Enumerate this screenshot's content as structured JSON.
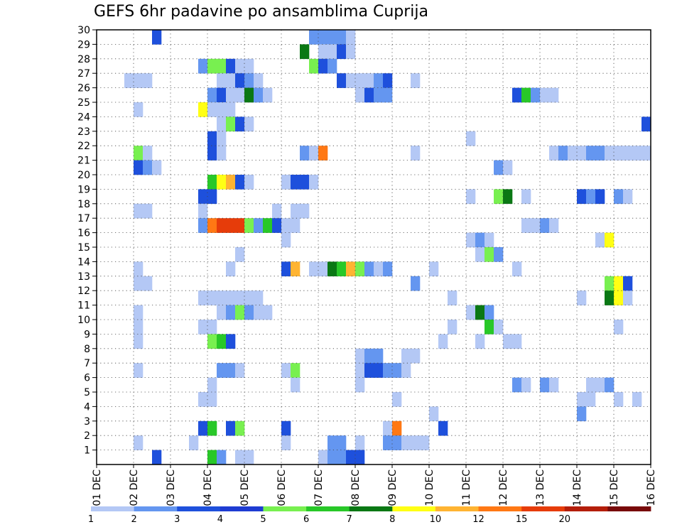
{
  "chart_data": {
    "type": "heatmap",
    "title": "GEFS 6hr padavine po ansamblima Cuprija",
    "xlabel": "",
    "ylabel": "",
    "x_tick_labels": [
      "01 DEC",
      "02 DEC",
      "03 DEC",
      "04 DEC",
      "05 DEC",
      "06 DEC",
      "07 DEC",
      "08 DEC",
      "09 DEC",
      "10 DEC",
      "11 DEC",
      "12 DEC",
      "13 DEC",
      "14 DEC",
      "15 DEC",
      "16 DEC"
    ],
    "y_tick_labels": [
      "1",
      "2",
      "3",
      "4",
      "5",
      "6",
      "7",
      "8",
      "9",
      "10",
      "11",
      "12",
      "13",
      "14",
      "15",
      "16",
      "17",
      "18",
      "19",
      "20",
      "21",
      "22",
      "23",
      "24",
      "25",
      "26",
      "27",
      "28",
      "29",
      "30"
    ],
    "xlim": [
      0,
      60
    ],
    "ylim": [
      0,
      30
    ],
    "grid": true,
    "legend": {
      "placement": "bottom",
      "labels": [
        "1",
        "2",
        "3",
        "4",
        "5",
        "6",
        "7",
        "8",
        "10",
        "12",
        "15",
        "20"
      ],
      "colors": [
        "#b4c8f5",
        "#6496f0",
        "#1e50dc",
        "#1e3cd2",
        "#78f050",
        "#28c828",
        "#0a7814",
        "#ffff14",
        "#ffb432",
        "#ff7814",
        "#e63c0a",
        "#b41e0a",
        "#780a0a"
      ]
    },
    "color_levels": [
      "#b4c8f5",
      "#6496f0",
      "#1e50dc",
      "#78f050",
      "#28c828",
      "#0a7814",
      "#ffff14",
      "#ffb432",
      "#ff7814",
      "#e63c0a"
    ],
    "cells_format": "[time_step_6h, member, level_index]",
    "cells": [
      [
        6,
        30,
        2
      ],
      [
        23,
        30,
        1
      ],
      [
        24,
        30,
        1
      ],
      [
        25,
        30,
        1
      ],
      [
        26,
        30,
        1
      ],
      [
        27,
        30,
        0
      ],
      [
        22,
        29,
        5
      ],
      [
        24,
        29,
        0
      ],
      [
        25,
        29,
        0
      ],
      [
        26,
        29,
        2
      ],
      [
        27,
        29,
        0
      ],
      [
        11,
        28,
        1
      ],
      [
        12,
        28,
        3
      ],
      [
        13,
        28,
        3
      ],
      [
        14,
        28,
        2
      ],
      [
        15,
        28,
        0
      ],
      [
        16,
        28,
        0
      ],
      [
        23,
        28,
        3
      ],
      [
        24,
        28,
        2
      ],
      [
        25,
        28,
        1
      ],
      [
        3,
        27,
        0
      ],
      [
        4,
        27,
        0
      ],
      [
        5,
        27,
        0
      ],
      [
        13,
        27,
        0
      ],
      [
        14,
        27,
        0
      ],
      [
        15,
        27,
        2
      ],
      [
        16,
        27,
        1
      ],
      [
        17,
        27,
        0
      ],
      [
        26,
        27,
        2
      ],
      [
        27,
        27,
        0
      ],
      [
        28,
        27,
        0
      ],
      [
        29,
        27,
        0
      ],
      [
        30,
        27,
        1
      ],
      [
        31,
        27,
        2
      ],
      [
        34,
        27,
        0
      ],
      [
        12,
        26,
        1
      ],
      [
        13,
        26,
        2
      ],
      [
        14,
        26,
        0
      ],
      [
        15,
        26,
        0
      ],
      [
        16,
        26,
        5
      ],
      [
        17,
        26,
        1
      ],
      [
        18,
        26,
        0
      ],
      [
        28,
        26,
        0
      ],
      [
        29,
        26,
        2
      ],
      [
        30,
        26,
        1
      ],
      [
        31,
        26,
        1
      ],
      [
        45,
        26,
        2
      ],
      [
        46,
        26,
        4
      ],
      [
        47,
        26,
        1
      ],
      [
        48,
        26,
        0
      ],
      [
        49,
        26,
        0
      ],
      [
        4,
        25,
        0
      ],
      [
        11,
        25,
        6
      ],
      [
        12,
        25,
        0
      ],
      [
        13,
        25,
        0
      ],
      [
        14,
        25,
        0
      ],
      [
        13,
        24,
        0
      ],
      [
        14,
        24,
        3
      ],
      [
        15,
        24,
        2
      ],
      [
        16,
        24,
        0
      ],
      [
        59,
        24,
        2
      ],
      [
        12,
        23,
        2
      ],
      [
        13,
        23,
        0
      ],
      [
        40,
        23,
        0
      ],
      [
        4,
        22,
        3
      ],
      [
        5,
        22,
        0
      ],
      [
        12,
        22,
        2
      ],
      [
        13,
        22,
        0
      ],
      [
        22,
        22,
        1
      ],
      [
        23,
        22,
        0
      ],
      [
        24,
        22,
        8
      ],
      [
        34,
        22,
        0
      ],
      [
        49,
        22,
        0
      ],
      [
        50,
        22,
        1
      ],
      [
        51,
        22,
        0
      ],
      [
        52,
        22,
        0
      ],
      [
        53,
        22,
        1
      ],
      [
        54,
        22,
        1
      ],
      [
        55,
        22,
        0
      ],
      [
        56,
        22,
        0
      ],
      [
        57,
        22,
        0
      ],
      [
        58,
        22,
        0
      ],
      [
        59,
        22,
        0
      ],
      [
        4,
        21,
        2
      ],
      [
        5,
        21,
        1
      ],
      [
        6,
        21,
        0
      ],
      [
        43,
        21,
        1
      ],
      [
        44,
        21,
        0
      ],
      [
        12,
        20,
        4
      ],
      [
        13,
        20,
        6
      ],
      [
        14,
        20,
        7
      ],
      [
        15,
        20,
        2
      ],
      [
        16,
        20,
        0
      ],
      [
        20,
        20,
        0
      ],
      [
        21,
        20,
        2
      ],
      [
        22,
        20,
        2
      ],
      [
        23,
        20,
        0
      ],
      [
        11,
        19,
        2
      ],
      [
        12,
        19,
        2
      ],
      [
        40,
        19,
        0
      ],
      [
        43,
        19,
        3
      ],
      [
        44,
        19,
        5
      ],
      [
        46,
        19,
        0
      ],
      [
        52,
        19,
        2
      ],
      [
        53,
        19,
        1
      ],
      [
        54,
        19,
        2
      ],
      [
        56,
        19,
        1
      ],
      [
        57,
        19,
        0
      ],
      [
        4,
        18,
        0
      ],
      [
        5,
        18,
        0
      ],
      [
        11,
        18,
        0
      ],
      [
        19,
        18,
        0
      ],
      [
        21,
        18,
        0
      ],
      [
        22,
        18,
        0
      ],
      [
        11,
        17,
        1
      ],
      [
        12,
        17,
        8
      ],
      [
        13,
        17,
        9
      ],
      [
        14,
        17,
        9
      ],
      [
        15,
        17,
        9
      ],
      [
        16,
        17,
        3
      ],
      [
        17,
        17,
        1
      ],
      [
        18,
        17,
        4
      ],
      [
        19,
        17,
        2
      ],
      [
        20,
        17,
        0
      ],
      [
        21,
        17,
        0
      ],
      [
        46,
        17,
        0
      ],
      [
        47,
        17,
        0
      ],
      [
        48,
        17,
        1
      ],
      [
        49,
        17,
        0
      ],
      [
        20,
        16,
        0
      ],
      [
        40,
        16,
        0
      ],
      [
        41,
        16,
        1
      ],
      [
        42,
        16,
        0
      ],
      [
        54,
        16,
        0
      ],
      [
        55,
        16,
        6
      ],
      [
        15,
        15,
        0
      ],
      [
        41,
        15,
        0
      ],
      [
        42,
        15,
        3
      ],
      [
        43,
        15,
        1
      ],
      [
        4,
        14,
        0
      ],
      [
        14,
        14,
        0
      ],
      [
        20,
        14,
        2
      ],
      [
        21,
        14,
        7
      ],
      [
        23,
        14,
        0
      ],
      [
        24,
        14,
        0
      ],
      [
        25,
        14,
        5
      ],
      [
        26,
        14,
        4
      ],
      [
        27,
        14,
        7
      ],
      [
        28,
        14,
        3
      ],
      [
        29,
        14,
        1
      ],
      [
        30,
        14,
        0
      ],
      [
        31,
        14,
        1
      ],
      [
        36,
        14,
        0
      ],
      [
        45,
        14,
        0
      ],
      [
        4,
        13,
        0
      ],
      [
        5,
        13,
        0
      ],
      [
        34,
        13,
        1
      ],
      [
        55,
        13,
        3
      ],
      [
        56,
        13,
        6
      ],
      [
        57,
        13,
        2
      ],
      [
        11,
        12,
        0
      ],
      [
        12,
        12,
        0
      ],
      [
        13,
        12,
        0
      ],
      [
        14,
        12,
        0
      ],
      [
        15,
        12,
        0
      ],
      [
        16,
        12,
        0
      ],
      [
        17,
        12,
        0
      ],
      [
        38,
        12,
        0
      ],
      [
        52,
        12,
        0
      ],
      [
        55,
        12,
        5
      ],
      [
        56,
        12,
        6
      ],
      [
        57,
        12,
        0
      ],
      [
        4,
        11,
        0
      ],
      [
        13,
        11,
        0
      ],
      [
        14,
        11,
        1
      ],
      [
        15,
        11,
        3
      ],
      [
        16,
        11,
        1
      ],
      [
        17,
        11,
        0
      ],
      [
        18,
        11,
        0
      ],
      [
        40,
        11,
        0
      ],
      [
        41,
        11,
        5
      ],
      [
        42,
        11,
        1
      ],
      [
        4,
        10,
        0
      ],
      [
        11,
        10,
        0
      ],
      [
        12,
        10,
        0
      ],
      [
        38,
        10,
        0
      ],
      [
        42,
        10,
        4
      ],
      [
        43,
        10,
        0
      ],
      [
        56,
        10,
        0
      ],
      [
        4,
        9,
        0
      ],
      [
        12,
        9,
        3
      ],
      [
        13,
        9,
        4
      ],
      [
        14,
        9,
        2
      ],
      [
        37,
        9,
        0
      ],
      [
        41,
        9,
        0
      ],
      [
        44,
        9,
        0
      ],
      [
        45,
        9,
        0
      ],
      [
        28,
        8,
        0
      ],
      [
        29,
        8,
        1
      ],
      [
        30,
        8,
        1
      ],
      [
        33,
        8,
        0
      ],
      [
        34,
        8,
        0
      ],
      [
        4,
        7,
        0
      ],
      [
        13,
        7,
        1
      ],
      [
        14,
        7,
        1
      ],
      [
        15,
        7,
        0
      ],
      [
        20,
        7,
        0
      ],
      [
        21,
        7,
        3
      ],
      [
        28,
        7,
        0
      ],
      [
        29,
        7,
        2
      ],
      [
        30,
        7,
        2
      ],
      [
        31,
        7,
        1
      ],
      [
        32,
        7,
        1
      ],
      [
        33,
        7,
        0
      ],
      [
        12,
        6,
        0
      ],
      [
        21,
        6,
        0
      ],
      [
        28,
        6,
        0
      ],
      [
        45,
        6,
        1
      ],
      [
        46,
        6,
        0
      ],
      [
        48,
        6,
        1
      ],
      [
        49,
        6,
        0
      ],
      [
        53,
        6,
        0
      ],
      [
        54,
        6,
        0
      ],
      [
        55,
        6,
        1
      ],
      [
        11,
        5,
        0
      ],
      [
        12,
        5,
        0
      ],
      [
        32,
        5,
        0
      ],
      [
        52,
        5,
        0
      ],
      [
        53,
        5,
        0
      ],
      [
        56,
        5,
        0
      ],
      [
        58,
        5,
        0
      ],
      [
        36,
        4,
        0
      ],
      [
        52,
        4,
        1
      ],
      [
        11,
        3,
        2
      ],
      [
        12,
        3,
        4
      ],
      [
        14,
        3,
        2
      ],
      [
        15,
        3,
        3
      ],
      [
        20,
        3,
        2
      ],
      [
        31,
        3,
        0
      ],
      [
        32,
        3,
        8
      ],
      [
        37,
        3,
        2
      ],
      [
        4,
        2,
        0
      ],
      [
        10,
        2,
        0
      ],
      [
        20,
        2,
        0
      ],
      [
        25,
        2,
        1
      ],
      [
        26,
        2,
        1
      ],
      [
        28,
        2,
        0
      ],
      [
        31,
        2,
        1
      ],
      [
        32,
        2,
        1
      ],
      [
        33,
        2,
        0
      ],
      [
        34,
        2,
        0
      ],
      [
        35,
        2,
        0
      ],
      [
        6,
        1,
        2
      ],
      [
        12,
        1,
        4
      ],
      [
        13,
        1,
        1
      ],
      [
        15,
        1,
        0
      ],
      [
        16,
        1,
        0
      ],
      [
        24,
        1,
        0
      ],
      [
        25,
        1,
        1
      ],
      [
        26,
        1,
        1
      ],
      [
        27,
        1,
        2
      ],
      [
        28,
        1,
        2
      ]
    ]
  }
}
